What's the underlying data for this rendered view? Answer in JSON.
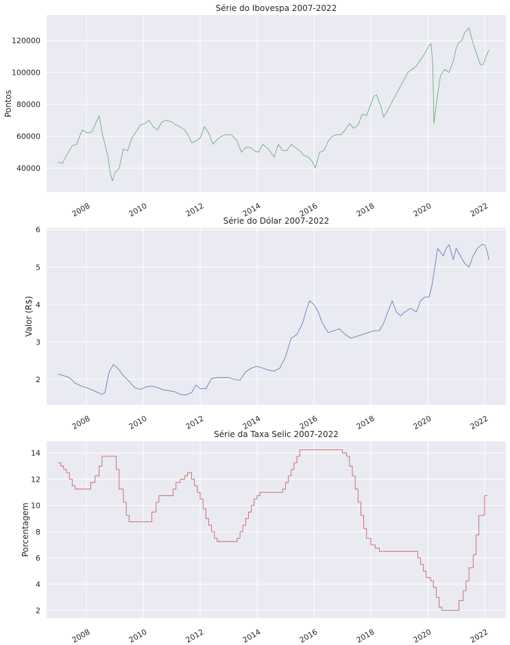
{
  "chart_data": [
    {
      "type": "line",
      "title": "Série do Ibovespa 2007-2022",
      "xlabel": "",
      "ylabel": "Pontos",
      "xlim": [
        2006.6,
        2022.75
      ],
      "ylim": [
        25000,
        136000
      ],
      "xticks": [
        2008,
        2010,
        2012,
        2014,
        2016,
        2018,
        2020,
        2022
      ],
      "xtick_labels": [
        "2008",
        "2010",
        "2012",
        "2014",
        "2016",
        "2018",
        "2020",
        "2022"
      ],
      "yticks": [
        40000,
        60000,
        80000,
        100000,
        120000
      ],
      "ytick_labels": [
        "40000",
        "60000",
        "80000",
        "100000",
        "120000"
      ],
      "grid": true,
      "color": "#55a868",
      "series": [
        {
          "x": [
            2007.0,
            2007.15,
            2007.3,
            2007.5,
            2007.65,
            2007.85,
            2008.05,
            2008.2,
            2008.35,
            2008.45,
            2008.55,
            2008.65,
            2008.75,
            2008.85,
            2008.92,
            2009.0,
            2009.15,
            2009.3,
            2009.45,
            2009.6,
            2009.75,
            2009.9,
            2010.05,
            2010.2,
            2010.35,
            2010.5,
            2010.65,
            2010.8,
            2011.0,
            2011.15,
            2011.3,
            2011.45,
            2011.6,
            2011.7,
            2011.85,
            2012.0,
            2012.15,
            2012.3,
            2012.45,
            2012.6,
            2012.75,
            2012.9,
            2013.1,
            2013.3,
            2013.45,
            2013.6,
            2013.75,
            2013.9,
            2014.05,
            2014.2,
            2014.4,
            2014.6,
            2014.75,
            2014.9,
            2015.05,
            2015.2,
            2015.35,
            2015.5,
            2015.65,
            2015.8,
            2015.95,
            2016.05,
            2016.2,
            2016.35,
            2016.5,
            2016.65,
            2016.8,
            2016.95,
            2017.1,
            2017.25,
            2017.4,
            2017.55,
            2017.7,
            2017.85,
            2018.0,
            2018.1,
            2018.2,
            2018.35,
            2018.45,
            2018.55,
            2018.7,
            2018.85,
            2019.0,
            2019.15,
            2019.3,
            2019.45,
            2019.6,
            2019.75,
            2019.9,
            2020.05,
            2020.12,
            2020.18,
            2020.22,
            2020.3,
            2020.45,
            2020.6,
            2020.75,
            2020.9,
            2021.0,
            2021.1,
            2021.2,
            2021.3,
            2021.45,
            2021.6,
            2021.75,
            2021.85,
            2021.95,
            2022.05,
            2022.15
          ],
          "y": [
            44000,
            43000,
            48000,
            54000,
            55000,
            64000,
            62000,
            63000,
            69000,
            73000,
            62000,
            55000,
            48000,
            36000,
            32000,
            37000,
            40000,
            52000,
            51000,
            59000,
            63000,
            67000,
            68000,
            70000,
            66000,
            64000,
            69000,
            70000,
            69000,
            67000,
            66000,
            64000,
            60000,
            56000,
            57000,
            59000,
            66000,
            62000,
            55000,
            58000,
            60000,
            61000,
            61000,
            57000,
            50000,
            53000,
            53000,
            51000,
            50000,
            55000,
            52000,
            47000,
            55000,
            51000,
            51000,
            55000,
            53000,
            51000,
            48000,
            47000,
            44000,
            40000,
            50000,
            51000,
            57000,
            60000,
            61000,
            61000,
            64000,
            68000,
            65000,
            67000,
            74000,
            73000,
            80000,
            85000,
            86000,
            79000,
            72000,
            75000,
            80000,
            85000,
            90000,
            95000,
            100000,
            102000,
            104000,
            108000,
            112000,
            117000,
            118000,
            105000,
            68000,
            80000,
            98000,
            102000,
            100000,
            107000,
            115000,
            119000,
            120000,
            125000,
            128000,
            118000,
            110000,
            105000,
            105000,
            110000,
            114000
          ]
        }
      ]
    },
    {
      "type": "line",
      "title": "Série do Dólar 2007-2022",
      "xlabel": "",
      "ylabel": "Valor (R$)",
      "xlim": [
        2006.6,
        2022.75
      ],
      "ylim": [
        1.32,
        6.05
      ],
      "xticks": [
        2008,
        2010,
        2012,
        2014,
        2016,
        2018,
        2020,
        2022
      ],
      "xtick_labels": [
        "2008",
        "2010",
        "2012",
        "2014",
        "2016",
        "2018",
        "2020",
        "2022"
      ],
      "yticks": [
        2,
        3,
        4,
        5,
        6
      ],
      "ytick_labels": [
        "2",
        "3",
        "4",
        "5",
        "6"
      ],
      "grid": true,
      "color": "#4c72b0",
      "series": [
        {
          "x": [
            2007.0,
            2007.2,
            2007.4,
            2007.6,
            2007.8,
            2008.0,
            2008.2,
            2008.4,
            2008.55,
            2008.65,
            2008.8,
            2008.95,
            2009.1,
            2009.3,
            2009.5,
            2009.7,
            2009.9,
            2010.1,
            2010.3,
            2010.5,
            2010.7,
            2010.9,
            2011.1,
            2011.3,
            2011.5,
            2011.7,
            2011.85,
            2012.0,
            2012.2,
            2012.4,
            2012.6,
            2012.8,
            2013.0,
            2013.2,
            2013.4,
            2013.6,
            2013.8,
            2014.0,
            2014.2,
            2014.4,
            2014.6,
            2014.8,
            2015.0,
            2015.2,
            2015.4,
            2015.6,
            2015.75,
            2015.85,
            2016.0,
            2016.15,
            2016.3,
            2016.5,
            2016.7,
            2016.9,
            2017.1,
            2017.3,
            2017.5,
            2017.7,
            2017.9,
            2018.1,
            2018.3,
            2018.45,
            2018.6,
            2018.75,
            2018.9,
            2019.05,
            2019.2,
            2019.4,
            2019.6,
            2019.75,
            2019.9,
            2020.05,
            2020.15,
            2020.25,
            2020.35,
            2020.45,
            2020.55,
            2020.65,
            2020.75,
            2020.9,
            2021.0,
            2021.15,
            2021.3,
            2021.45,
            2021.6,
            2021.75,
            2021.9,
            2022.0,
            2022.1,
            2022.15
          ],
          "y": [
            2.14,
            2.1,
            2.05,
            1.9,
            1.83,
            1.78,
            1.72,
            1.65,
            1.6,
            1.65,
            2.2,
            2.4,
            2.3,
            2.1,
            1.95,
            1.78,
            1.73,
            1.8,
            1.82,
            1.78,
            1.72,
            1.7,
            1.67,
            1.6,
            1.58,
            1.65,
            1.85,
            1.75,
            1.75,
            2.02,
            2.05,
            2.05,
            2.05,
            2.0,
            1.98,
            2.2,
            2.3,
            2.35,
            2.3,
            2.25,
            2.22,
            2.3,
            2.6,
            3.1,
            3.2,
            3.5,
            3.9,
            4.1,
            4.0,
            3.8,
            3.5,
            3.25,
            3.3,
            3.35,
            3.2,
            3.1,
            3.15,
            3.2,
            3.25,
            3.3,
            3.3,
            3.5,
            3.8,
            4.1,
            3.8,
            3.7,
            3.8,
            3.9,
            3.8,
            4.1,
            4.2,
            4.2,
            4.5,
            5.0,
            5.5,
            5.4,
            5.3,
            5.5,
            5.6,
            5.2,
            5.5,
            5.3,
            5.1,
            5.0,
            5.3,
            5.5,
            5.6,
            5.6,
            5.4,
            5.2
          ]
        }
      ]
    },
    {
      "type": "line",
      "title": "Série da Taxa Selic 2007-2022",
      "xlabel": "",
      "ylabel": "Porcentagem",
      "xlim": [
        2006.6,
        2022.75
      ],
      "ylim": [
        1.4,
        14.9
      ],
      "xticks": [
        2008,
        2010,
        2012,
        2014,
        2016,
        2018,
        2020,
        2022
      ],
      "xtick_labels": [
        "2008",
        "2010",
        "2012",
        "2014",
        "2016",
        "2018",
        "2020",
        "2022"
      ],
      "yticks": [
        2,
        4,
        6,
        8,
        10,
        12,
        14
      ],
      "ytick_labels": [
        "2",
        "4",
        "6",
        "8",
        "10",
        "12",
        "14"
      ],
      "grid": true,
      "color": "#c44e52",
      "step": true,
      "series": [
        {
          "x": [
            2007.0,
            2007.1,
            2007.2,
            2007.3,
            2007.4,
            2007.5,
            2007.6,
            2007.7,
            2007.9,
            2008.0,
            2008.15,
            2008.3,
            2008.45,
            2008.55,
            2008.65,
            2008.75,
            2008.85,
            2008.95,
            2009.05,
            2009.15,
            2009.3,
            2009.4,
            2009.5,
            2009.6,
            2009.75,
            2010.0,
            2010.2,
            2010.3,
            2010.45,
            2010.55,
            2010.7,
            2011.0,
            2011.05,
            2011.15,
            2011.3,
            2011.45,
            2011.55,
            2011.65,
            2011.7,
            2011.8,
            2011.9,
            2012.0,
            2012.1,
            2012.2,
            2012.3,
            2012.4,
            2012.5,
            2012.6,
            2012.7,
            2012.8,
            2013.0,
            2013.3,
            2013.4,
            2013.5,
            2013.6,
            2013.7,
            2013.8,
            2013.9,
            2014.0,
            2014.1,
            2014.2,
            2014.3,
            2014.5,
            2014.9,
            2015.0,
            2015.1,
            2015.2,
            2015.3,
            2015.4,
            2015.5,
            2015.65,
            2016.0,
            2016.5,
            2016.9,
            2017.0,
            2017.15,
            2017.25,
            2017.35,
            2017.45,
            2017.55,
            2017.65,
            2017.75,
            2017.85,
            2018.0,
            2018.15,
            2018.3,
            2019.0,
            2019.5,
            2019.65,
            2019.75,
            2019.85,
            2019.95,
            2020.1,
            2020.2,
            2020.3,
            2020.4,
            2020.5,
            2020.6,
            2021.0,
            2021.1,
            2021.25,
            2021.35,
            2021.45,
            2021.6,
            2021.7,
            2021.8,
            2021.9,
            2022.0,
            2022.1
          ],
          "y": [
            13.25,
            13.0,
            12.75,
            12.5,
            12.0,
            11.5,
            11.25,
            11.25,
            11.25,
            11.25,
            11.75,
            12.25,
            13.0,
            13.75,
            13.75,
            13.75,
            13.75,
            13.75,
            12.75,
            11.25,
            10.25,
            9.25,
            8.75,
            8.75,
            8.75,
            8.75,
            8.75,
            9.5,
            10.25,
            10.75,
            10.75,
            10.75,
            11.25,
            11.75,
            12.0,
            12.25,
            12.5,
            12.5,
            12.0,
            11.5,
            11.0,
            10.5,
            9.75,
            9.0,
            8.5,
            8.0,
            7.5,
            7.25,
            7.25,
            7.25,
            7.25,
            7.5,
            8.0,
            8.5,
            9.0,
            9.5,
            10.0,
            10.5,
            10.75,
            11.0,
            11.0,
            11.0,
            11.0,
            11.25,
            11.75,
            12.25,
            12.75,
            13.25,
            13.75,
            14.25,
            14.25,
            14.25,
            14.25,
            14.25,
            14.0,
            13.75,
            13.0,
            12.25,
            11.25,
            10.25,
            9.25,
            8.25,
            7.5,
            7.0,
            6.75,
            6.5,
            6.5,
            6.5,
            6.0,
            5.5,
            5.0,
            4.5,
            4.25,
            3.75,
            3.0,
            2.25,
            2.0,
            2.0,
            2.0,
            2.75,
            3.5,
            4.25,
            5.25,
            6.25,
            7.75,
            9.25,
            9.25,
            10.75,
            10.75
          ]
        }
      ]
    }
  ]
}
